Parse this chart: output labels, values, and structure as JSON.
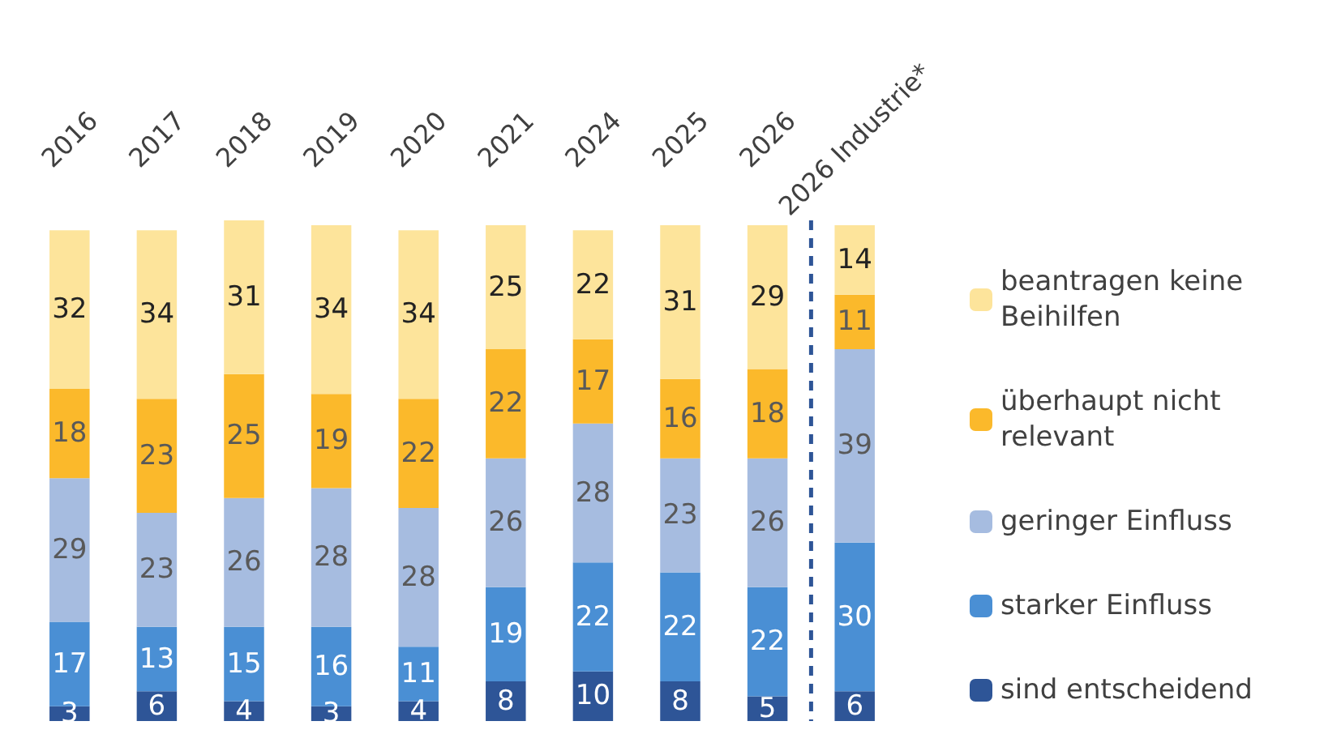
{
  "chart_data": {
    "type": "bar",
    "stacked": true,
    "data_labels": true,
    "legend": "right",
    "categories": [
      "2016",
      "2017",
      "2018",
      "2019",
      "2020",
      "2021",
      "2024",
      "2025",
      "2026",
      "2026 Industrie*"
    ],
    "series": [
      {
        "name": "sind entscheidend",
        "color": "#2e5597",
        "values": [
          3,
          6,
          4,
          3,
          4,
          8,
          10,
          8,
          5,
          6
        ]
      },
      {
        "name": "starker Einfluss",
        "color": "#4a8fd4",
        "values": [
          17,
          13,
          15,
          16,
          11,
          19,
          22,
          22,
          22,
          30
        ]
      },
      {
        "name": "geringer Einfluss",
        "color": "#a6bce0",
        "values": [
          29,
          23,
          26,
          28,
          28,
          26,
          28,
          23,
          26,
          39
        ]
      },
      {
        "name": "überhaupt nicht relevant",
        "color": "#fbb92b",
        "values": [
          18,
          23,
          25,
          19,
          22,
          22,
          17,
          16,
          18,
          11
        ]
      },
      {
        "name": "beantragen keine Beihilfen",
        "color": "#fde49b",
        "values": [
          32,
          34,
          31,
          34,
          34,
          25,
          22,
          31,
          29,
          14
        ]
      }
    ],
    "ref_lines": [
      {
        "axis": "x",
        "value": "2026 Industrie*",
        "color": "#2e5597",
        "line_style": "dashed"
      }
    ]
  }
}
